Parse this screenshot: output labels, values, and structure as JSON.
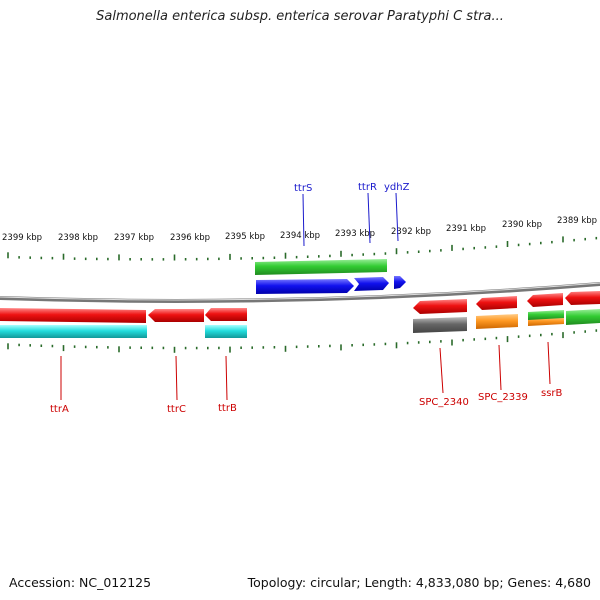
{
  "title": "Salmonella enterica subsp. enterica serovar Paratyphi C stra...",
  "footer": {
    "accession": "Accession: NC_012125",
    "summary": "Topology: circular; Length: 4,833,080 bp; Genes: 4,680"
  },
  "ruler_labels": [
    "2399 kbp",
    "2398 kbp",
    "2397 kbp",
    "2396 kbp",
    "2395 kbp",
    "2394 kbp",
    "2393 kbp",
    "2392 kbp",
    "2391 kbp",
    "2390 kbp",
    "2389 kbp"
  ],
  "top_gene_labels": [
    "ttrS",
    "ttrR",
    "ydhZ"
  ],
  "bottom_gene_labels": [
    "ttrA",
    "ttrC",
    "ttrB",
    "SPC_2340",
    "SPC_2339",
    "ssrB"
  ],
  "colors": {
    "label_top": "#1a1acc",
    "label_bottom": "#cc0000",
    "tick": "#2a6b2a",
    "backbone": "#777777",
    "red": "#ee1111",
    "cyan": "#22dddd",
    "green": "#33cc33",
    "blue": "#1111ee",
    "gray": "#666666",
    "orange": "#ff9922"
  }
}
